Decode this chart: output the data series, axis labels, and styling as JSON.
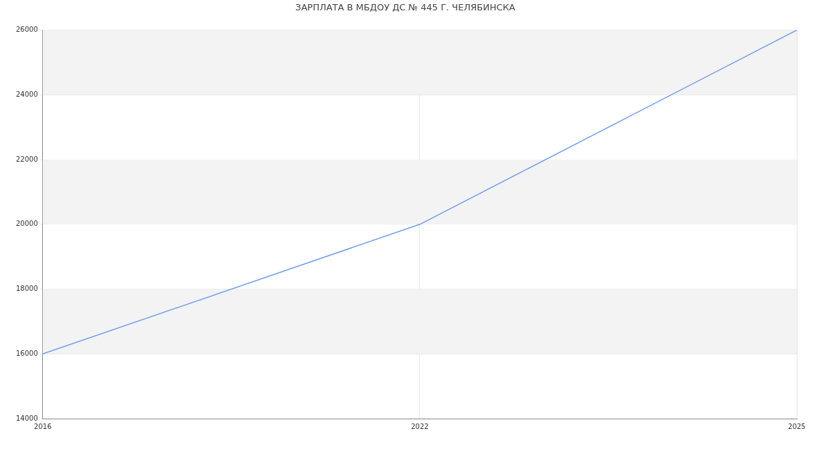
{
  "chart_data": {
    "type": "line",
    "title": "ЗАРПЛАТА В МБДОУ ДС № 445 Г. ЧЕЛЯБИНСКА",
    "categories": [
      "2016",
      "2022",
      "2025"
    ],
    "series": [
      {
        "color": "#6f9cf0",
        "values": [
          16000,
          20000,
          26000
        ]
      }
    ],
    "ylim": [
      14000,
      26000
    ],
    "yticks": [
      14000,
      16000,
      18000,
      20000,
      22000,
      24000,
      26000
    ],
    "grid": true,
    "legend": false,
    "marker": "none"
  }
}
